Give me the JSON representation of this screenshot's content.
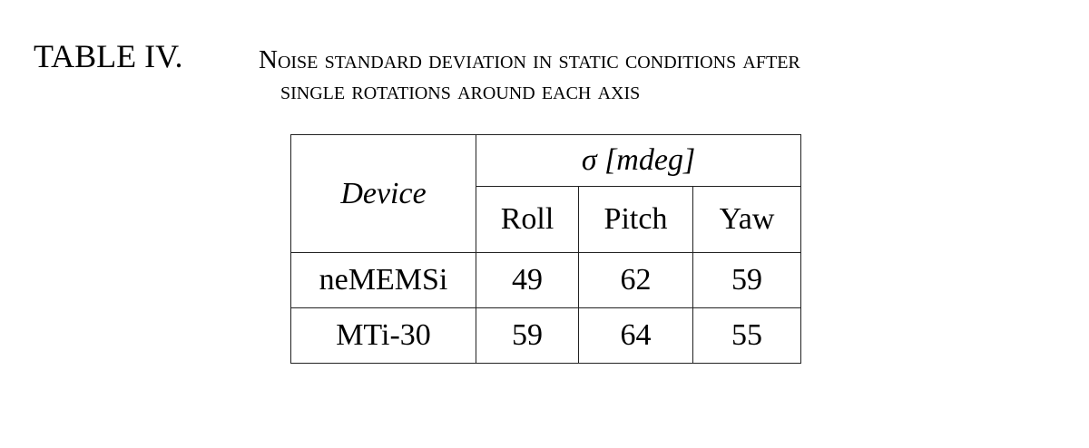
{
  "caption": {
    "label": "TABLE IV.",
    "title_line1": "Noise standard deviation in static conditions after",
    "title_line2": "single rotations around each axis"
  },
  "table": {
    "header": {
      "device": "Device",
      "group": "σ  [mdeg]",
      "columns": [
        "Roll",
        "Pitch",
        "Yaw"
      ]
    },
    "rows": [
      {
        "device": "neMEMSi",
        "values": [
          "49",
          "62",
          "59"
        ]
      },
      {
        "device": "MTi-30",
        "values": [
          "59",
          "64",
          "55"
        ]
      }
    ]
  }
}
